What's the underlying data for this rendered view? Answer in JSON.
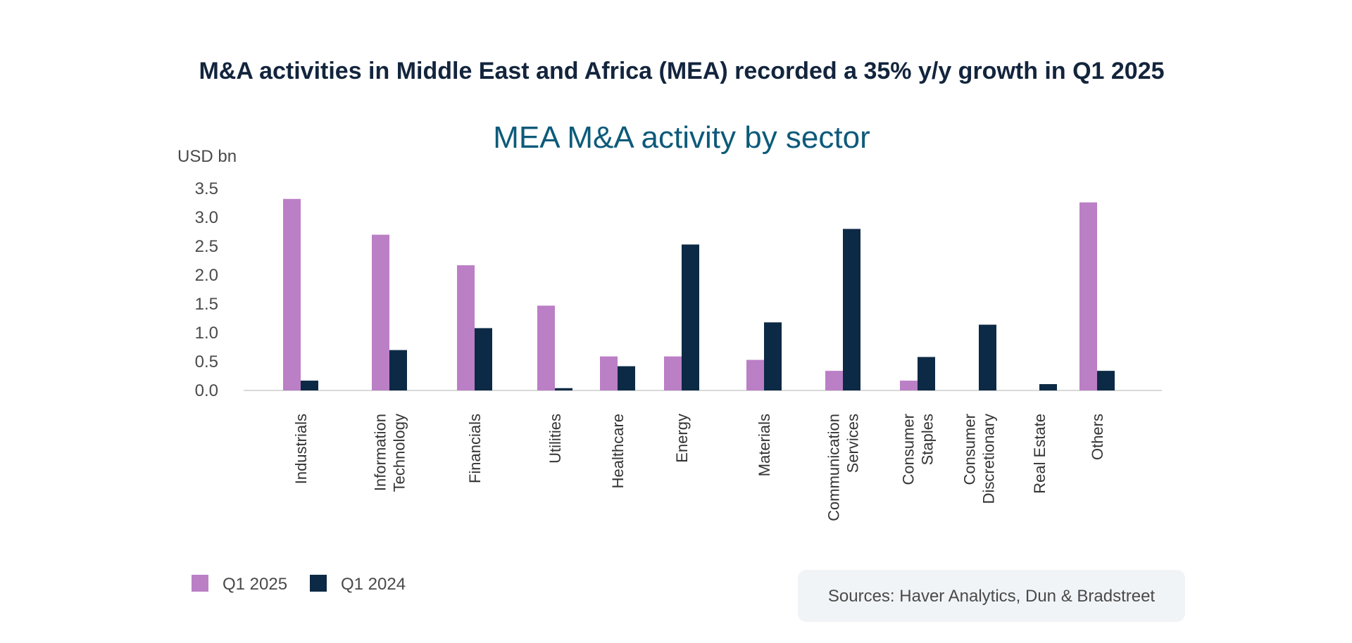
{
  "chart_data": {
    "type": "bar",
    "headline": "M&A activities in Middle East and Africa (MEA) recorded a 35% y/y growth in Q1 2025",
    "title": "MEA M&A activity by sector",
    "ylabel": "USD bn",
    "xlabel": "",
    "ylim": [
      0,
      3.5
    ],
    "yticks": [
      "0.0",
      "0.5",
      "1.0",
      "1.5",
      "2.0",
      "2.5",
      "3.0",
      "3.5"
    ],
    "categories": [
      [
        "Industrials"
      ],
      [
        "Information",
        "Technology"
      ],
      [
        "Financials"
      ],
      [
        "Utilities"
      ],
      [
        "Healthcare"
      ],
      [
        "Energy"
      ],
      [
        "Materials"
      ],
      [
        "Communication",
        "Services"
      ],
      [
        "Consumer",
        "Staples"
      ],
      [
        "Consumer",
        "Discretionary"
      ],
      [
        "Real Estate"
      ],
      [
        "Others"
      ]
    ],
    "series": [
      {
        "name": "Q1 2025",
        "color": "#bb7fc6",
        "values": [
          3.32,
          2.7,
          2.17,
          1.47,
          0.59,
          0.59,
          0.53,
          0.34,
          0.17,
          0.0,
          0.0,
          3.26
        ]
      },
      {
        "name": "Q1 2024",
        "color": "#0c2a45",
        "values": [
          0.17,
          0.7,
          1.08,
          0.04,
          0.42,
          2.53,
          1.18,
          2.8,
          0.58,
          1.14,
          0.11,
          0.34
        ]
      }
    ],
    "legend_position": "bottom-left",
    "grid": false,
    "source": "Sources: Haver Analytics, Dun & Bradstreet"
  },
  "colors": {
    "headline": "#13253d",
    "title": "#0d5a7a",
    "axis": "#d9d9d9",
    "source_box": "#f1f4f7"
  }
}
